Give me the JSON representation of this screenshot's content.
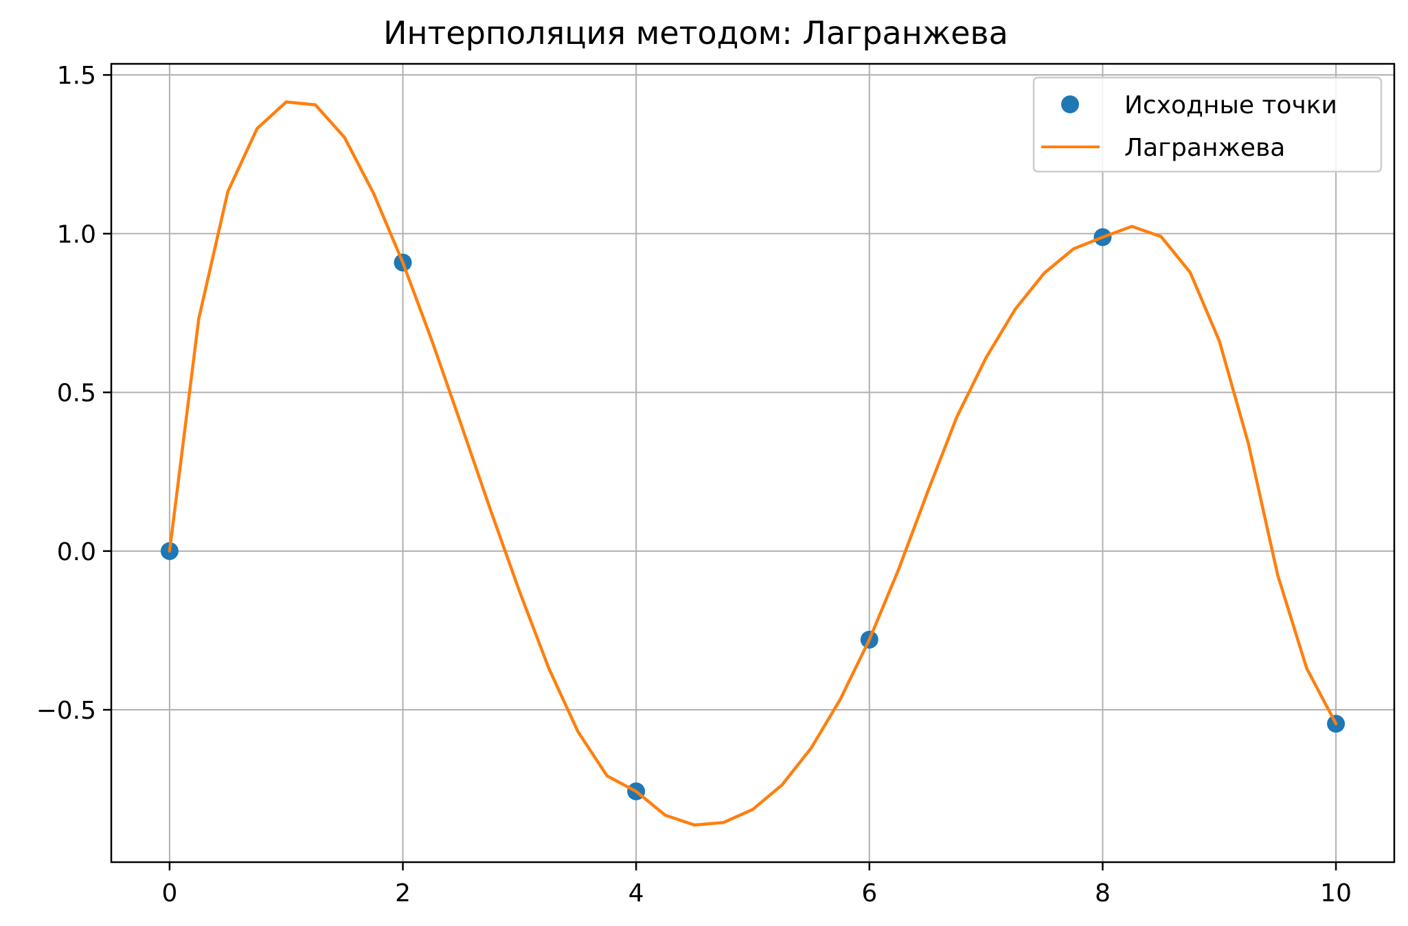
{
  "chart_data": {
    "type": "line",
    "title": "Интерполяция методом: Лагранжева",
    "xlabel": "",
    "ylabel": "",
    "xlim": [
      -0.5,
      10.5
    ],
    "ylim": [
      -0.98,
      1.535
    ],
    "x_ticks": [
      0,
      2,
      4,
      6,
      8,
      10
    ],
    "x_tick_labels": [
      "0",
      "2",
      "4",
      "6",
      "8",
      "10"
    ],
    "y_ticks": [
      -0.5,
      0.0,
      0.5,
      1.0,
      1.5
    ],
    "y_tick_labels": [
      "−0.5",
      "0.0",
      "0.5",
      "1.0",
      "1.5"
    ],
    "grid": true,
    "legend": "top-right",
    "series": [
      {
        "name": "Исходные точки",
        "kind": "scatter",
        "color": "#1f77b4",
        "x": [
          0,
          2,
          4,
          6,
          8,
          10
        ],
        "y": [
          0.0,
          0.909,
          -0.757,
          -0.279,
          0.989,
          -0.544
        ]
      },
      {
        "name": "Лагранжева",
        "kind": "line",
        "color": "#ff7f0e",
        "x": [
          0,
          0.25,
          0.5,
          0.75,
          1.0,
          1.25,
          1.5,
          1.75,
          2.0,
          2.25,
          2.5,
          2.75,
          3.0,
          3.25,
          3.5,
          3.75,
          4.0,
          4.25,
          4.5,
          4.75,
          5.0,
          5.25,
          5.5,
          5.75,
          6.0,
          6.25,
          6.5,
          6.75,
          7.0,
          7.25,
          7.5,
          7.75,
          8.0,
          8.25,
          8.5,
          8.75,
          9.0,
          9.25,
          9.5,
          9.75,
          10.0
        ],
        "y": [
          0.0,
          0.732,
          1.133,
          1.331,
          1.415,
          1.406,
          1.303,
          1.126,
          0.909,
          0.662,
          0.398,
          0.131,
          -0.127,
          -0.368,
          -0.568,
          -0.708,
          -0.757,
          -0.832,
          -0.863,
          -0.855,
          -0.814,
          -0.737,
          -0.621,
          -0.467,
          -0.279,
          -0.058,
          0.187,
          0.423,
          0.609,
          0.762,
          0.876,
          0.952,
          0.989,
          1.023,
          0.991,
          0.878,
          0.662,
          0.338,
          -0.075,
          -0.37,
          -0.544
        ]
      }
    ]
  }
}
